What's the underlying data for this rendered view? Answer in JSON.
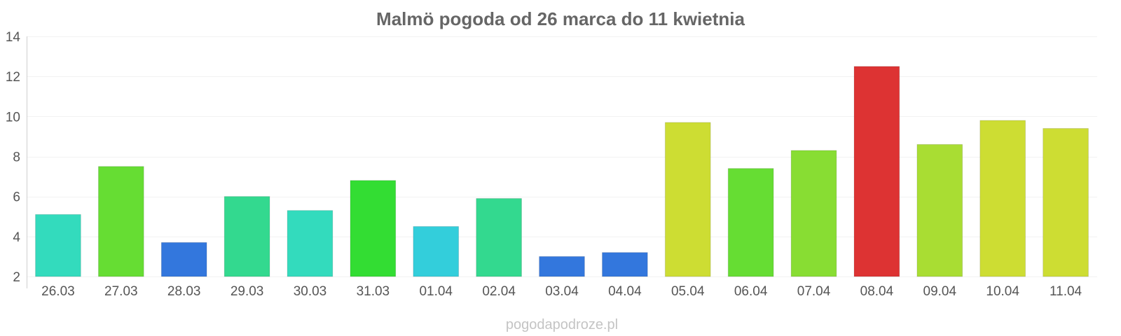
{
  "chart_data": {
    "type": "bar",
    "title": "Malmö pogoda od 26 marca do 11 kwietnia",
    "xlabel": "",
    "ylabel": "",
    "ylim": [
      2,
      14
    ],
    "yticks": [
      2,
      4,
      6,
      8,
      10,
      12,
      14
    ],
    "grid": true,
    "legend": "none",
    "categories": [
      "26.03",
      "27.03",
      "28.03",
      "29.03",
      "30.03",
      "31.03",
      "01.04",
      "02.04",
      "03.04",
      "04.04",
      "05.04",
      "06.04",
      "07.04",
      "08.04",
      "09.04",
      "10.04",
      "11.04"
    ],
    "values": [
      5.1,
      7.5,
      3.7,
      6.0,
      5.3,
      6.8,
      4.5,
      5.9,
      3.0,
      3.2,
      9.7,
      7.4,
      8.3,
      12.5,
      8.6,
      9.8,
      9.4
    ],
    "colors": [
      "#33dbbd",
      "#66dd33",
      "#3377dd",
      "#33d98f",
      "#33dbbd",
      "#33dd33",
      "#33cedb",
      "#33d98f",
      "#3377dd",
      "#3377dd",
      "#cddd33",
      "#66dd33",
      "#88dd33",
      "#dd3333",
      "#a9dd33",
      "#cddd33",
      "#cddd33"
    ]
  },
  "footer": {
    "watermark": "pogodapodroze.pl"
  }
}
